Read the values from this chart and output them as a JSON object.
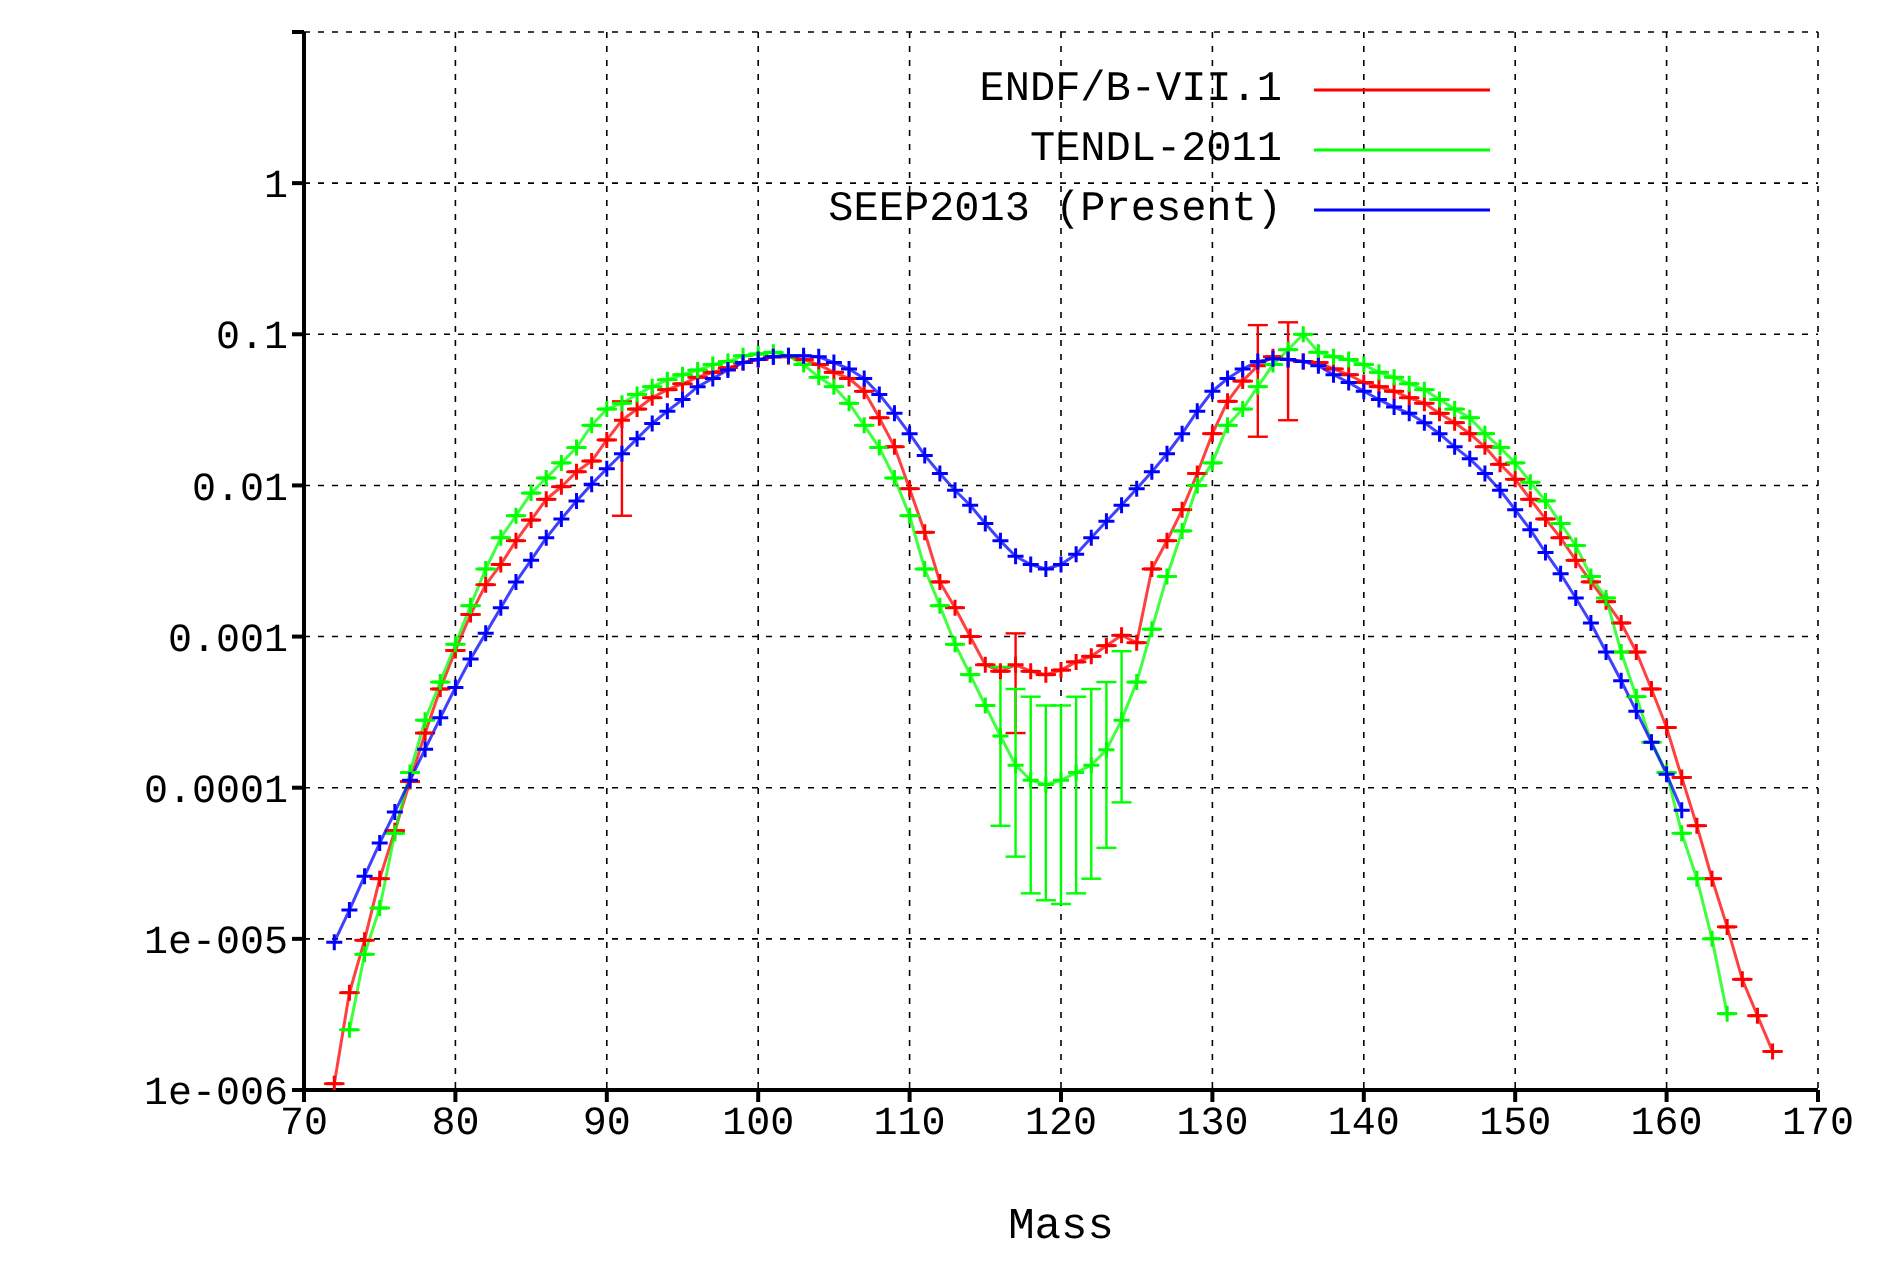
{
  "chart_data": {
    "type": "line",
    "xlabel": "Mass",
    "log": "y",
    "grid": true,
    "legend": "top right",
    "marker": "cross",
    "line_style": "solid",
    "xlim": [
      70,
      170
    ],
    "xticks": [
      70,
      80,
      90,
      100,
      110,
      120,
      130,
      140,
      150,
      160,
      170
    ],
    "ylim": [
      1e-06,
      10
    ],
    "yticks": [
      {
        "value": 1e-06,
        "label": "1e-006"
      },
      {
        "value": 1e-05,
        "label": "1e-005"
      },
      0.0001,
      0.001,
      0.01,
      0.1,
      1,
      {
        "value": 10,
        "label": null
      }
    ],
    "series": [
      {
        "name": "ENDF/B-VII.1",
        "color": "#ff0000",
        "x": [
          72,
          73,
          74,
          75,
          76,
          77,
          78,
          79,
          80,
          81,
          82,
          83,
          84,
          85,
          86,
          87,
          88,
          89,
          90,
          91,
          92,
          93,
          94,
          95,
          96,
          97,
          98,
          99,
          100,
          101,
          102,
          103,
          104,
          105,
          106,
          107,
          108,
          109,
          110,
          111,
          112,
          113,
          114,
          115,
          116,
          117,
          118,
          119,
          120,
          121,
          122,
          123,
          124,
          125,
          126,
          127,
          128,
          129,
          130,
          131,
          132,
          133,
          134,
          135,
          136,
          137,
          138,
          139,
          140,
          141,
          142,
          143,
          144,
          145,
          146,
          147,
          148,
          149,
          150,
          151,
          152,
          153,
          154,
          155,
          156,
          157,
          158,
          159,
          160,
          161,
          162,
          163,
          164,
          165,
          166,
          167
        ],
        "values": [
          1.1e-06,
          4.4e-06,
          9.8e-06,
          2.5e-05,
          5.2e-05,
          0.00011,
          0.00023,
          0.00045,
          0.00081,
          0.0014,
          0.0022,
          0.003,
          0.0043,
          0.0059,
          0.0081,
          0.0098,
          0.0123,
          0.0145,
          0.02,
          0.027,
          0.032,
          0.038,
          0.043,
          0.047,
          0.052,
          0.056,
          0.06,
          0.065,
          0.068,
          0.071,
          0.071,
          0.068,
          0.063,
          0.056,
          0.051,
          0.042,
          0.028,
          0.018,
          0.0095,
          0.0049,
          0.0023,
          0.00155,
          0.001,
          0.00065,
          0.00059,
          0.00065,
          0.00059,
          0.00056,
          0.0006,
          0.00068,
          0.00074,
          0.00087,
          0.00102,
          0.00091,
          0.0028,
          0.0043,
          0.0069,
          0.012,
          0.022,
          0.036,
          0.049,
          0.062,
          0.071,
          0.068,
          0.066,
          0.065,
          0.059,
          0.054,
          0.048,
          0.045,
          0.042,
          0.038,
          0.035,
          0.03,
          0.026,
          0.022,
          0.018,
          0.0138,
          0.011,
          0.0081,
          0.006,
          0.0045,
          0.0032,
          0.0023,
          0.0017,
          0.00123,
          0.00079,
          0.00045,
          0.00025,
          0.000117,
          5.6e-05,
          2.5e-05,
          1.2e-05,
          5.4e-06,
          3.1e-06,
          1.8e-06
        ],
        "errors": [
          null,
          null,
          null,
          null,
          null,
          null,
          null,
          null,
          null,
          null,
          null,
          null,
          null,
          null,
          null,
          null,
          null,
          null,
          null,
          [
            0.0063,
            0.036
          ],
          null,
          null,
          null,
          null,
          null,
          null,
          null,
          null,
          null,
          null,
          null,
          null,
          null,
          null,
          null,
          null,
          null,
          null,
          null,
          null,
          null,
          null,
          null,
          null,
          null,
          [
            0.00023,
            0.00105
          ],
          null,
          null,
          null,
          null,
          null,
          null,
          null,
          null,
          null,
          null,
          null,
          null,
          null,
          null,
          null,
          [
            0.021,
            0.115
          ],
          null,
          [
            0.027,
            0.12
          ],
          null,
          null,
          null,
          null,
          null,
          null,
          null,
          null,
          null,
          null,
          null,
          null,
          null,
          null,
          null,
          null,
          null,
          null,
          null,
          null,
          null,
          null,
          null,
          null,
          null,
          null,
          null,
          null,
          null,
          null,
          null,
          null
        ]
      },
      {
        "name": "TENDL-2011",
        "color": "#00ff00",
        "x": [
          73,
          74,
          75,
          76,
          77,
          78,
          79,
          80,
          81,
          82,
          83,
          84,
          85,
          86,
          87,
          88,
          89,
          90,
          91,
          92,
          93,
          94,
          95,
          96,
          97,
          98,
          99,
          100,
          101,
          102,
          103,
          104,
          105,
          106,
          107,
          108,
          109,
          110,
          111,
          112,
          113,
          114,
          115,
          116,
          117,
          118,
          119,
          120,
          121,
          122,
          123,
          124,
          125,
          126,
          127,
          128,
          129,
          130,
          131,
          132,
          133,
          134,
          135,
          136,
          137,
          138,
          139,
          140,
          141,
          142,
          143,
          144,
          145,
          146,
          147,
          148,
          149,
          150,
          151,
          152,
          153,
          154,
          155,
          156,
          157,
          158,
          159,
          160,
          161,
          162,
          163,
          164
        ],
        "values": [
          2.5e-06,
          7.9e-06,
          1.6e-05,
          5e-05,
          0.000126,
          0.00028,
          0.0005,
          0.00089,
          0.0016,
          0.0028,
          0.0045,
          0.0063,
          0.0089,
          0.0112,
          0.0141,
          0.0178,
          0.025,
          0.032,
          0.035,
          0.04,
          0.045,
          0.05,
          0.054,
          0.058,
          0.063,
          0.066,
          0.072,
          0.074,
          0.076,
          0.072,
          0.063,
          0.052,
          0.045,
          0.035,
          0.025,
          0.0178,
          0.0112,
          0.0063,
          0.0028,
          0.0016,
          0.00089,
          0.00056,
          0.00035,
          0.00022,
          0.000141,
          0.000112,
          0.000105,
          0.000112,
          0.000126,
          0.000141,
          0.000178,
          0.00028,
          0.0005,
          0.00112,
          0.0025,
          0.005,
          0.01,
          0.0141,
          0.025,
          0.032,
          0.045,
          0.063,
          0.079,
          0.1,
          0.076,
          0.071,
          0.068,
          0.063,
          0.056,
          0.052,
          0.047,
          0.043,
          0.037,
          0.032,
          0.028,
          0.022,
          0.0178,
          0.0141,
          0.0105,
          0.0079,
          0.0056,
          0.004,
          0.0025,
          0.0018,
          0.00079,
          0.0004,
          0.0002,
          0.000126,
          5e-05,
          2.5e-05,
          1e-05,
          3.2e-06
        ],
        "errors": [
          null,
          null,
          null,
          null,
          null,
          null,
          null,
          null,
          null,
          null,
          null,
          null,
          null,
          null,
          null,
          null,
          null,
          null,
          null,
          null,
          null,
          null,
          null,
          null,
          null,
          null,
          null,
          null,
          null,
          null,
          null,
          null,
          null,
          null,
          null,
          null,
          null,
          null,
          null,
          null,
          null,
          null,
          null,
          [
            5.6e-05,
            0.00063
          ],
          [
            3.5e-05,
            0.00045
          ],
          [
            2e-05,
            0.0004
          ],
          [
            1.8e-05,
            0.00035
          ],
          [
            1.7e-05,
            0.00035
          ],
          [
            2e-05,
            0.0004
          ],
          [
            2.5e-05,
            0.00045
          ],
          [
            4e-05,
            0.0005
          ],
          [
            8e-05,
            0.0008
          ],
          null,
          null,
          null,
          null,
          null,
          null,
          null,
          null,
          null,
          null,
          null,
          null,
          null,
          null,
          null,
          null,
          null,
          null,
          null,
          null,
          null,
          null,
          null,
          null,
          null,
          null,
          null,
          null,
          null,
          null,
          null,
          null,
          null,
          null,
          null,
          null,
          null,
          null,
          null,
          null
        ]
      },
      {
        "name": "SEEP2013 (Present)",
        "color": "#0000ff",
        "x": [
          72,
          73,
          74,
          75,
          76,
          77,
          78,
          79,
          80,
          81,
          82,
          83,
          84,
          85,
          86,
          87,
          88,
          89,
          90,
          91,
          92,
          93,
          94,
          95,
          96,
          97,
          98,
          99,
          100,
          101,
          102,
          103,
          104,
          105,
          106,
          107,
          108,
          109,
          110,
          111,
          112,
          113,
          114,
          115,
          116,
          117,
          118,
          119,
          120,
          121,
          122,
          123,
          124,
          125,
          126,
          127,
          128,
          129,
          130,
          131,
          132,
          133,
          134,
          135,
          136,
          137,
          138,
          139,
          140,
          141,
          142,
          143,
          144,
          145,
          146,
          147,
          148,
          149,
          150,
          151,
          152,
          153,
          154,
          155,
          156,
          157,
          158,
          159,
          160,
          161
        ],
        "values": [
          9.5e-06,
          1.55e-05,
          2.6e-05,
          4.3e-05,
          6.9e-05,
          0.000112,
          0.00018,
          0.00029,
          0.00046,
          0.00071,
          0.00105,
          0.00155,
          0.0023,
          0.0032,
          0.0045,
          0.006,
          0.0079,
          0.0102,
          0.0129,
          0.0162,
          0.0204,
          0.0257,
          0.031,
          0.037,
          0.045,
          0.051,
          0.058,
          0.065,
          0.068,
          0.071,
          0.072,
          0.072,
          0.071,
          0.065,
          0.059,
          0.051,
          0.04,
          0.03,
          0.022,
          0.0158,
          0.012,
          0.0093,
          0.0074,
          0.0056,
          0.0043,
          0.0034,
          0.003,
          0.0028,
          0.003,
          0.0035,
          0.0045,
          0.0058,
          0.0074,
          0.0095,
          0.0123,
          0.0162,
          0.022,
          0.031,
          0.042,
          0.051,
          0.059,
          0.066,
          0.069,
          0.068,
          0.066,
          0.062,
          0.054,
          0.048,
          0.042,
          0.037,
          0.033,
          0.03,
          0.026,
          0.022,
          0.018,
          0.015,
          0.012,
          0.0093,
          0.0069,
          0.0051,
          0.0036,
          0.0026,
          0.0018,
          0.00123,
          0.00079,
          0.00051,
          0.00032,
          0.0002,
          0.000123,
          7.1e-05
        ]
      }
    ]
  }
}
